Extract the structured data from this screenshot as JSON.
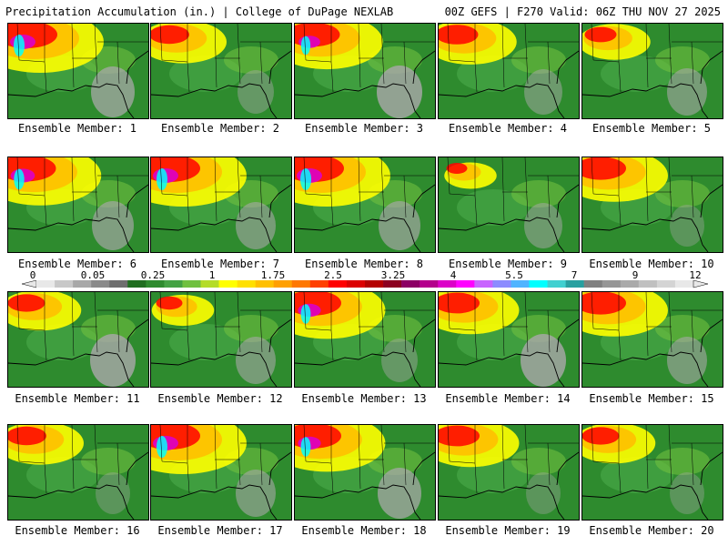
{
  "header": {
    "left": "Precipitation Accumulation (in.) | College of DuPage NEXLAB",
    "right": "00Z GEFS | F270 Valid: 06Z THU NOV 27 2025"
  },
  "colors": {
    "ramp": [
      "#e8e8e8",
      "#c8c8c8",
      "#a8a8a8",
      "#8a8a8a",
      "#6e6e6e",
      "#1f6e1f",
      "#2e8b2e",
      "#44a244",
      "#70c040",
      "#b4dc28",
      "#ffff00",
      "#ffe000",
      "#ffc000",
      "#ffa000",
      "#ff7800",
      "#ff4000",
      "#ff0000",
      "#dc0000",
      "#b40000",
      "#8c0020",
      "#8c0064",
      "#b4008c",
      "#dc00c8",
      "#ff00ff",
      "#c864ff",
      "#8c8cff",
      "#50b4ff",
      "#00ffff",
      "#40d0d0",
      "#28a0a0",
      "#808080",
      "#969696",
      "#aaaaaa",
      "#c0c0c0",
      "#d4d4d4",
      "#e8e8e8"
    ]
  },
  "colorbar": {
    "labels": [
      "0",
      "0.05",
      "0.25",
      "1",
      "1.75",
      "2.5",
      "3.25",
      "4",
      "5.5",
      "7",
      "9",
      "12"
    ]
  },
  "members": [
    {
      "label": "Ensemble Member: 1"
    },
    {
      "label": "Ensemble Member: 2"
    },
    {
      "label": "Ensemble Member: 3"
    },
    {
      "label": "Ensemble Member: 4"
    },
    {
      "label": "Ensemble Member: 5"
    },
    {
      "label": "Ensemble Member: 6"
    },
    {
      "label": "Ensemble Member: 7"
    },
    {
      "label": "Ensemble Member: 8"
    },
    {
      "label": "Ensemble Member: 9"
    },
    {
      "label": "Ensemble Member: 10"
    },
    {
      "label": "Ensemble Member: 11"
    },
    {
      "label": "Ensemble Member: 12"
    },
    {
      "label": "Ensemble Member: 13"
    },
    {
      "label": "Ensemble Member: 14"
    },
    {
      "label": "Ensemble Member: 15"
    },
    {
      "label": "Ensemble Member: 16"
    },
    {
      "label": "Ensemble Member: 17"
    },
    {
      "label": "Ensemble Member: 18"
    },
    {
      "label": "Ensemble Member: 19"
    },
    {
      "label": "Ensemble Member: 20"
    }
  ]
}
